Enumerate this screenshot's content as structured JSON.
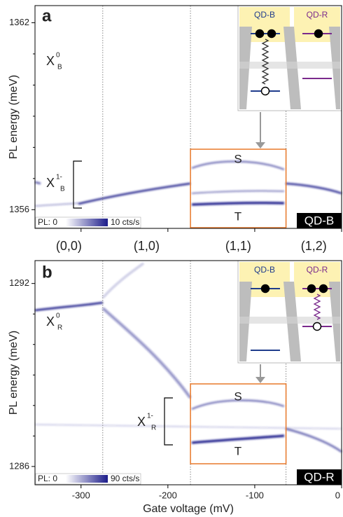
{
  "chart_data": [
    {
      "type": "heatmap",
      "panel": "a",
      "ylabel": "PL energy (meV)",
      "xlim": [
        -353,
        0
      ],
      "ylim": [
        1355.4,
        1362.55
      ],
      "xticks": [
        -300,
        -200,
        -100,
        0
      ],
      "show_xtick_labels": false,
      "yticks": [
        1356,
        1362
      ],
      "yminorticks": [
        1357,
        1358,
        1359,
        1360,
        1361
      ],
      "dividers": [
        -275,
        -174,
        -64
      ],
      "annotations": [
        {
          "text": "X",
          "sup": "0",
          "sub": "B"
        },
        {
          "text": "X",
          "sup": "1-",
          "sub": "B"
        }
      ],
      "levels": [
        "S",
        "T"
      ],
      "tag": "QD-B",
      "inset_labels": [
        "QD-B",
        "QD-R"
      ],
      "colorbar": {
        "min_label": "PL: 0",
        "max_label": "10 cts/s",
        "color": "#1c1c8a"
      }
    },
    {
      "type": "heatmap",
      "panel": "b",
      "ylabel": "PL energy (meV)",
      "xlabel": "Gate voltage (mV)",
      "xlim": [
        -353,
        0
      ],
      "ylim": [
        1285.4,
        1292.75
      ],
      "xticks": [
        -300,
        -200,
        -100,
        0
      ],
      "show_xtick_labels": true,
      "yticks": [
        1286,
        1292
      ],
      "yminorticks": [
        1287,
        1288,
        1289,
        1290,
        1291
      ],
      "dividers": [
        -275,
        -174,
        -64
      ],
      "annotations": [
        {
          "text": "X",
          "sup": "0",
          "sub": "R"
        },
        {
          "text": "X",
          "sup": "1-",
          "sub": "R"
        }
      ],
      "levels": [
        "S",
        "T"
      ],
      "tag": "QD-R",
      "inset_labels": [
        "QD-B",
        "QD-R"
      ],
      "colorbar": {
        "min_label": "PL: 0",
        "max_label": "90 cts/s",
        "color": "#1c1c8a"
      }
    }
  ],
  "charge_states": [
    "(0,0)",
    "(1,0)",
    "(1,1)",
    "(1,2)"
  ]
}
